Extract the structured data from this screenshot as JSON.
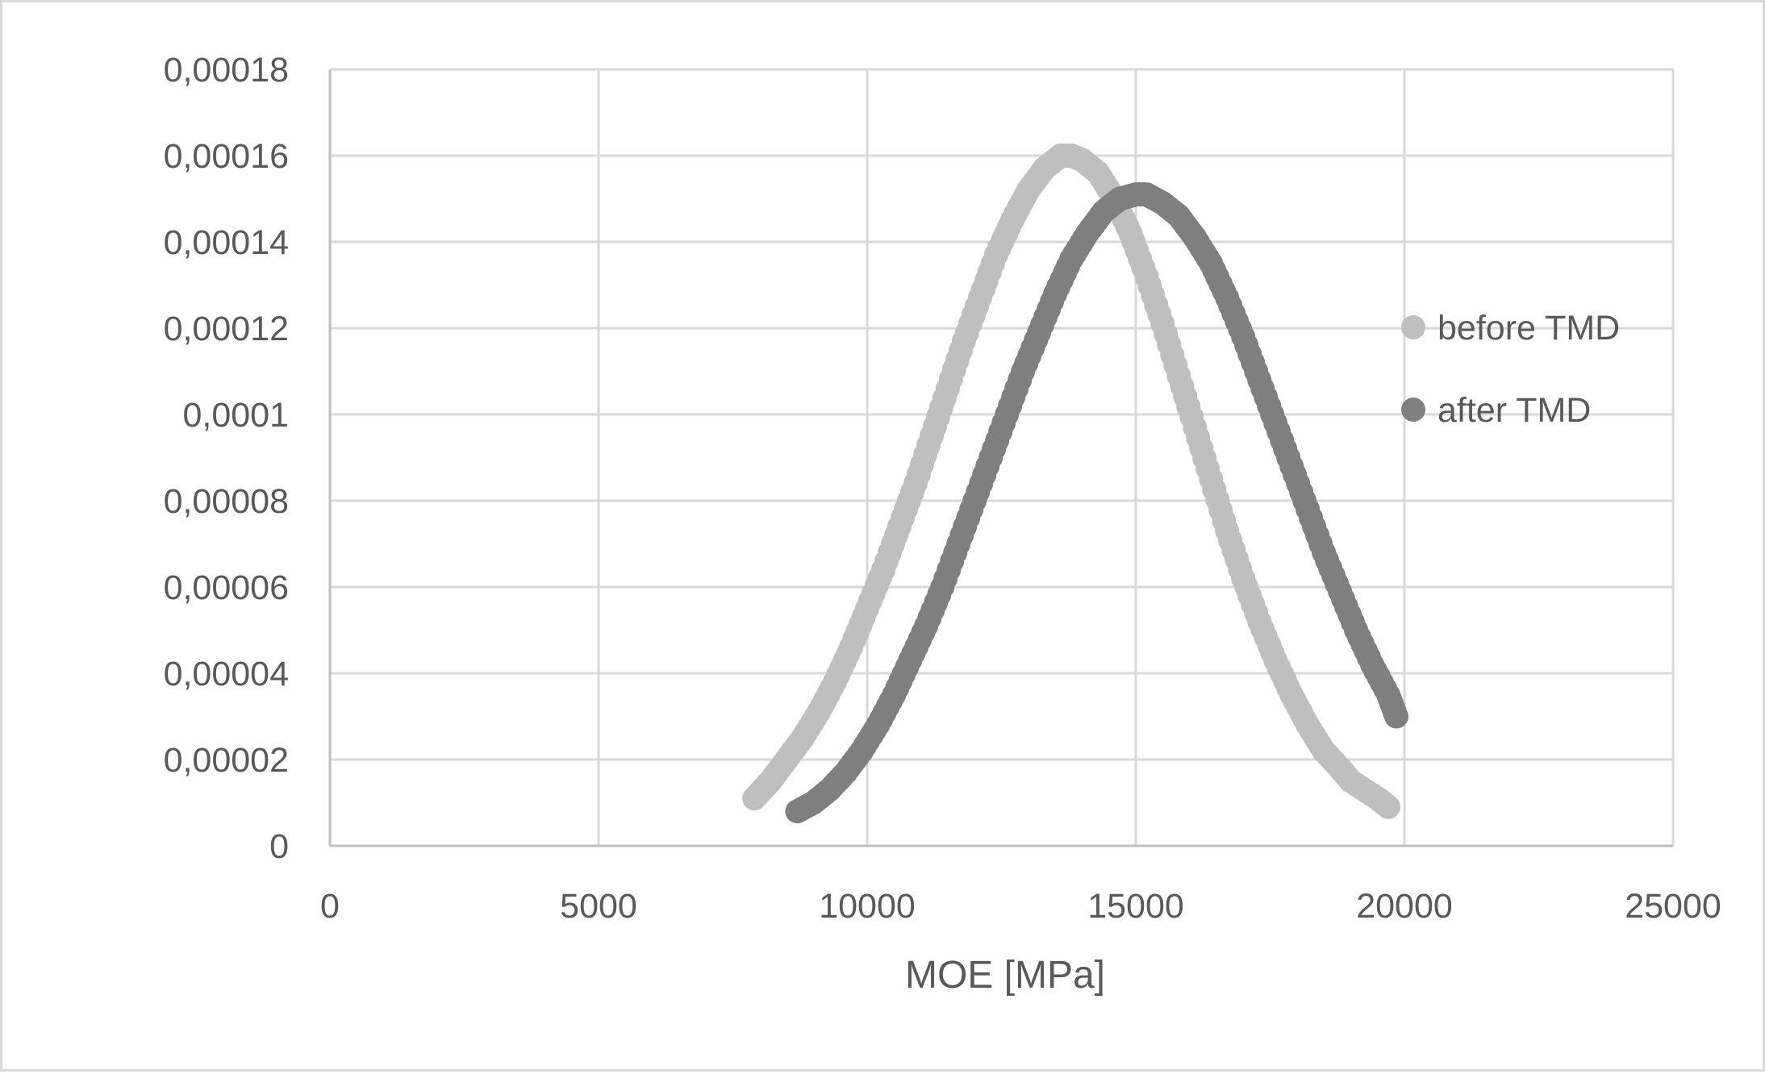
{
  "chart_data": {
    "type": "scatter",
    "title": "",
    "xlabel": "MOE [MPa]",
    "ylabel": "",
    "xlim": [
      0,
      25000
    ],
    "ylim": [
      0,
      0.00018
    ],
    "x_ticks": [
      0,
      5000,
      10000,
      15000,
      20000,
      25000
    ],
    "x_tick_labels": [
      "0",
      "5000",
      "10000",
      "15000",
      "20000",
      "25000"
    ],
    "y_ticks": [
      0,
      2e-05,
      4e-05,
      6e-05,
      8e-05,
      0.0001,
      0.00012,
      0.00014,
      0.00016,
      0.00018
    ],
    "y_tick_labels": [
      "0",
      "0,00002",
      "0,00004",
      "0,00006",
      "0,00008",
      "0,0001",
      "0,00012",
      "0,00014",
      "0,00016",
      "0,00018"
    ],
    "grid": true,
    "legend_position": "right",
    "series": [
      {
        "name": "before TMD",
        "color": "#bfbfbf",
        "x": [
          7900,
          8200,
          8500,
          8800,
          9100,
          9400,
          9700,
          10000,
          10300,
          10600,
          10900,
          11200,
          11500,
          11800,
          12100,
          12400,
          12700,
          13000,
          13300,
          13600,
          13800,
          14000,
          14300,
          14600,
          14900,
          15200,
          15500,
          15800,
          16100,
          16400,
          16700,
          17000,
          17300,
          17600,
          17900,
          18200,
          18500,
          18800,
          19000,
          19500,
          19700
        ],
        "y": [
          1.1e-05,
          1.5e-05,
          2e-05,
          2.5e-05,
          3.1e-05,
          3.8e-05,
          4.6e-05,
          5.5e-05,
          6.4e-05,
          7.4e-05,
          8.4e-05,
          9.5e-05,
          0.000106,
          0.000117,
          0.000127,
          0.000137,
          0.000145,
          0.000152,
          0.000157,
          0.00016,
          0.00016,
          0.000159,
          0.000156,
          0.00015,
          0.000142,
          0.000132,
          0.000121,
          0.000109,
          9.7e-05,
          8.5e-05,
          7.3e-05,
          6.2e-05,
          5.2e-05,
          4.3e-05,
          3.5e-05,
          2.8e-05,
          2.2e-05,
          1.8e-05,
          1.5e-05,
          1.1e-05,
          9e-06
        ]
      },
      {
        "name": "after TMD",
        "color": "#7f7f7f",
        "x": [
          8700,
          9000,
          9300,
          9600,
          9900,
          10200,
          10500,
          10800,
          11100,
          11400,
          11700,
          12000,
          12300,
          12600,
          12900,
          13200,
          13500,
          13800,
          14100,
          14400,
          14700,
          15000,
          15200,
          15500,
          15800,
          16100,
          16400,
          16700,
          17000,
          17300,
          17600,
          17900,
          18200,
          18500,
          18800,
          19100,
          19400,
          19700,
          19850
        ],
        "y": [
          8e-06,
          1e-05,
          1.3e-05,
          1.7e-05,
          2.2e-05,
          2.8e-05,
          3.5e-05,
          4.3e-05,
          5.1e-05,
          6e-05,
          7e-05,
          8e-05,
          9e-05,
          0.0001,
          0.00011,
          0.000119,
          0.000128,
          0.000136,
          0.000142,
          0.000147,
          0.00015,
          0.000151,
          0.000151,
          0.000149,
          0.000146,
          0.000141,
          0.000135,
          0.000127,
          0.000118,
          0.000108,
          9.8e-05,
          8.8e-05,
          7.8e-05,
          6.8e-05,
          5.9e-05,
          5e-05,
          4.2e-05,
          3.5e-05,
          3e-05
        ]
      }
    ]
  }
}
